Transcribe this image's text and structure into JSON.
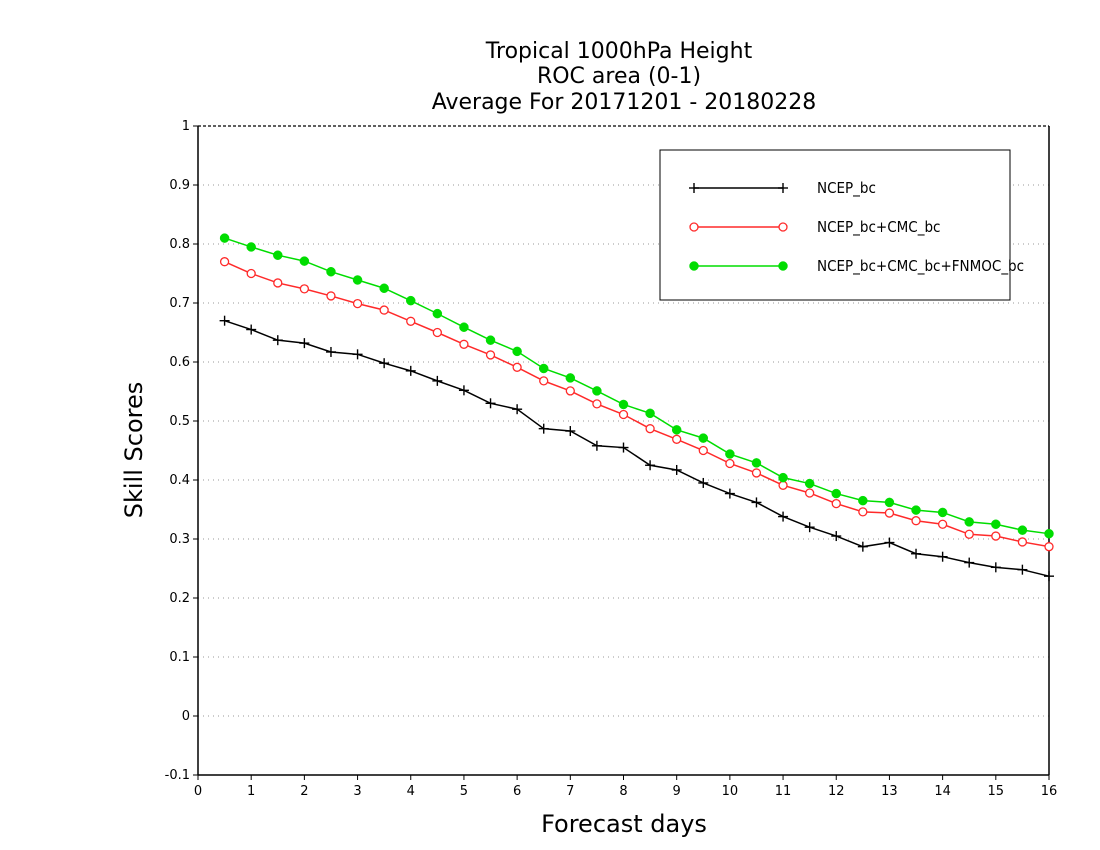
{
  "chart_data": {
    "type": "line",
    "title_lines": [
      "Tropical 1000hPa Height",
      "ROC area (0-1)",
      "Average For 20171201 - 20180228"
    ],
    "xlabel": "Forecast days",
    "ylabel": "Skill Scores",
    "xlim": [
      0,
      16
    ],
    "ylim": [
      -0.1,
      1
    ],
    "xticks": [
      0,
      1,
      2,
      3,
      4,
      5,
      6,
      7,
      8,
      9,
      10,
      11,
      12,
      13,
      14,
      15,
      16
    ],
    "yticks": [
      -0.1,
      0,
      0.1,
      0.2,
      0.3,
      0.4,
      0.5,
      0.6,
      0.7,
      0.8,
      0.9,
      1
    ],
    "ytick_labels": [
      "-0.1",
      "0",
      "0.1",
      "0.2",
      "0.3",
      "0.4",
      "0.5",
      "0.6",
      "0.7",
      "0.8",
      "0.9",
      "1"
    ],
    "grid": "horizontal dotted",
    "legend_position": "top-right",
    "x": [
      0.5,
      1,
      1.5,
      2,
      2.5,
      3,
      3.5,
      4,
      4.5,
      5,
      5.5,
      6,
      6.5,
      7,
      7.5,
      8,
      8.5,
      9,
      9.5,
      10,
      10.5,
      11,
      11.5,
      12,
      12.5,
      13,
      13.5,
      14,
      14.5,
      15,
      15.5,
      16
    ],
    "series": [
      {
        "name": "NCEP_bc",
        "color": "#000000",
        "marker": "plus",
        "values": [
          0.67,
          0.655,
          0.637,
          0.632,
          0.617,
          0.613,
          0.598,
          0.585,
          0.568,
          0.552,
          0.53,
          0.52,
          0.487,
          0.483,
          0.458,
          0.455,
          0.425,
          0.417,
          0.395,
          0.377,
          0.362,
          0.338,
          0.32,
          0.305,
          0.287,
          0.294,
          0.275,
          0.27,
          0.26,
          0.252,
          0.248,
          0.237
        ]
      },
      {
        "name": "NCEP_bc+CMC_bc",
        "color": "#ff2a2a",
        "marker": "open-circle",
        "values": [
          0.77,
          0.75,
          0.734,
          0.724,
          0.712,
          0.699,
          0.688,
          0.669,
          0.65,
          0.63,
          0.612,
          0.591,
          0.568,
          0.551,
          0.529,
          0.511,
          0.487,
          0.469,
          0.45,
          0.428,
          0.412,
          0.391,
          0.378,
          0.36,
          0.346,
          0.344,
          0.331,
          0.325,
          0.308,
          0.305,
          0.295,
          0.287
        ]
      },
      {
        "name": "NCEP_bc+CMC_bc+FNMOC_bc",
        "color": "#00dd00",
        "marker": "filled-circle",
        "values": [
          0.81,
          0.795,
          0.781,
          0.771,
          0.753,
          0.739,
          0.725,
          0.704,
          0.682,
          0.659,
          0.637,
          0.618,
          0.589,
          0.573,
          0.551,
          0.528,
          0.513,
          0.485,
          0.471,
          0.444,
          0.429,
          0.404,
          0.394,
          0.377,
          0.365,
          0.362,
          0.349,
          0.345,
          0.329,
          0.325,
          0.315,
          0.309
        ]
      }
    ]
  }
}
